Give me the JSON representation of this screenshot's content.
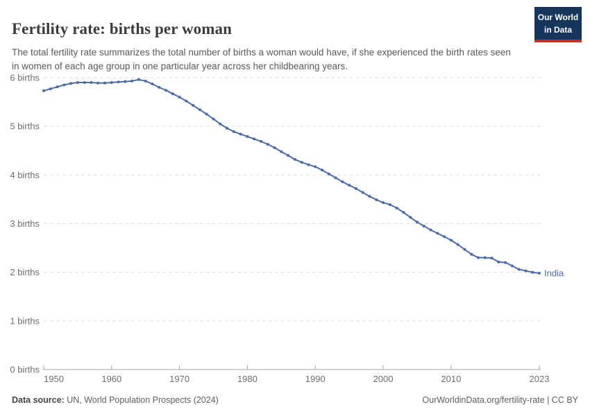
{
  "header": {
    "title": "Fertility rate: births per woman",
    "subtitle": "The total fertility rate summarizes the total number of births a woman would have, if she experienced the birth rates seen in women of each age group in one particular year across her childbearing years.",
    "logo": {
      "line1": "Our World",
      "line2": "in Data"
    }
  },
  "chart_data": {
    "type": "line",
    "title": "Fertility rate: births per woman",
    "xlabel": "",
    "ylabel": "",
    "unit": "births",
    "ylim": [
      0,
      6
    ],
    "xlim": [
      1950,
      2023
    ],
    "grid": true,
    "y_ticks": [
      0,
      1,
      2,
      3,
      4,
      5,
      6
    ],
    "y_tick_label_suffix": " births",
    "x_ticks": [
      1950,
      1960,
      1970,
      1980,
      1990,
      2000,
      2010,
      2023
    ],
    "legend_position": "end-of-line-label",
    "x": [
      1950,
      1951,
      1952,
      1953,
      1954,
      1955,
      1956,
      1957,
      1958,
      1959,
      1960,
      1961,
      1962,
      1963,
      1964,
      1965,
      1966,
      1967,
      1968,
      1969,
      1970,
      1971,
      1972,
      1973,
      1974,
      1975,
      1976,
      1977,
      1978,
      1979,
      1980,
      1981,
      1982,
      1983,
      1984,
      1985,
      1986,
      1987,
      1988,
      1989,
      1990,
      1991,
      1992,
      1993,
      1994,
      1995,
      1996,
      1997,
      1998,
      1999,
      2000,
      2001,
      2002,
      2003,
      2004,
      2005,
      2006,
      2007,
      2008,
      2009,
      2010,
      2011,
      2012,
      2013,
      2014,
      2015,
      2016,
      2017,
      2018,
      2019,
      2020,
      2021,
      2022,
      2023
    ],
    "series": [
      {
        "name": "India",
        "values": [
          5.73,
          5.77,
          5.81,
          5.85,
          5.88,
          5.9,
          5.9,
          5.9,
          5.89,
          5.89,
          5.9,
          5.91,
          5.92,
          5.93,
          5.96,
          5.93,
          5.87,
          5.8,
          5.74,
          5.67,
          5.6,
          5.52,
          5.43,
          5.34,
          5.25,
          5.15,
          5.05,
          4.96,
          4.89,
          4.84,
          4.79,
          4.74,
          4.69,
          4.63,
          4.56,
          4.48,
          4.4,
          4.32,
          4.26,
          4.21,
          4.17,
          4.1,
          4.02,
          3.94,
          3.86,
          3.79,
          3.72,
          3.64,
          3.56,
          3.49,
          3.43,
          3.39,
          3.32,
          3.23,
          3.13,
          3.03,
          2.95,
          2.87,
          2.8,
          2.73,
          2.66,
          2.57,
          2.47,
          2.37,
          2.3,
          2.3,
          2.29,
          2.21,
          2.2,
          2.13,
          2.06,
          2.03,
          2.0,
          1.98
        ]
      }
    ]
  },
  "footer": {
    "datasource_label": "Data source:",
    "datasource_value": " UN, World Population Prospects (2024)",
    "credit": "OurWorldinData.org/fertility-rate | CC BY"
  },
  "colors": {
    "line": "#4c6ba6",
    "entity_label": "#4c6ba6",
    "gridline": "#dedede",
    "axis": "#a0a0a0",
    "tick_label": "#6e6e6e",
    "title": "#3c3c3c",
    "subtitle": "#595959",
    "logo_navy": "#16365c",
    "logo_red": "#c62b22"
  }
}
